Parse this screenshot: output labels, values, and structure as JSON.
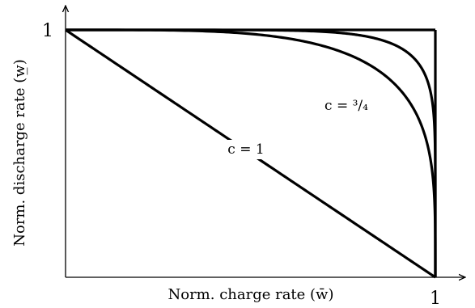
{
  "chart_data": {
    "type": "line",
    "xlabel": "Norm. charge rate (w̄)",
    "ylabel": "Norm. discharge rate (w̲)",
    "xlim": [
      0,
      1.08
    ],
    "ylim": [
      0,
      1.08
    ],
    "x_ticks": [
      {
        "value": 1,
        "label": "1"
      }
    ],
    "y_ticks": [
      {
        "value": 1,
        "label": "1"
      }
    ],
    "grid": false,
    "legend": "none",
    "series": [
      {
        "label": "c = 1",
        "exponent": 1,
        "points": [
          [
            0,
            1
          ],
          [
            1,
            0
          ]
        ]
      },
      {
        "label": "c = ³/₄",
        "exponent": 4,
        "points": [
          [
            0.33,
            1
          ],
          [
            0.5,
            0.994
          ],
          [
            0.6,
            0.979
          ],
          [
            0.7,
            0.942
          ],
          [
            0.8,
            0.858
          ],
          [
            0.85,
            0.783
          ],
          [
            0.9,
            0.669
          ],
          [
            0.95,
            0.466
          ],
          [
            1,
            0
          ]
        ]
      },
      {
        "label": "",
        "exponent": 8,
        "points": [
          [
            0.67,
            1
          ],
          [
            0.8,
            0.995
          ],
          [
            0.9,
            0.96
          ],
          [
            0.95,
            0.895
          ],
          [
            0.97,
            0.83
          ],
          [
            0.99,
            0.66
          ],
          [
            1,
            0
          ]
        ]
      }
    ],
    "bounds": {
      "x_max": 1,
      "y_max": 1
    },
    "colors": {
      "line": "#000000",
      "background": "#ffffff"
    }
  }
}
